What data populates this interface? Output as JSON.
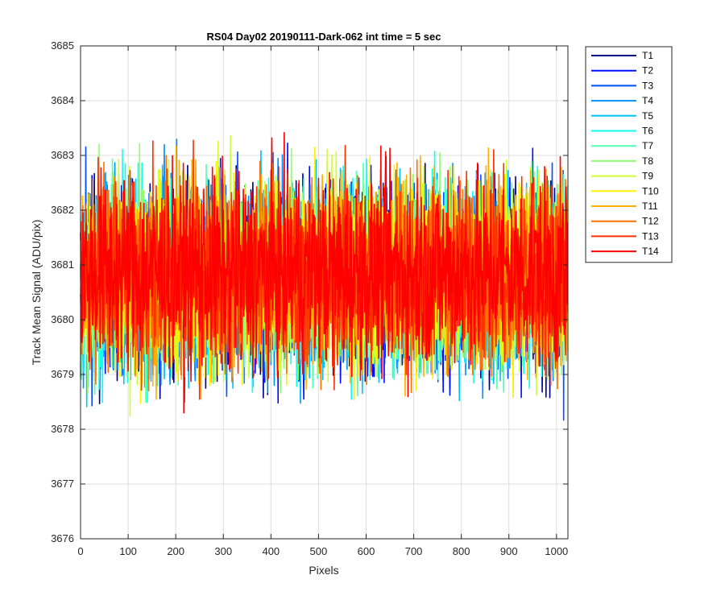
{
  "chart_data": {
    "type": "line",
    "title": "RS04 Day02 20190111-Dark-062 int time = 5 sec",
    "xlabel": "Pixels",
    "ylabel": "Track Mean Signal (ADU/pix)",
    "xlim": [
      0,
      1024
    ],
    "ylim": [
      3676,
      3685
    ],
    "xticks": [
      0,
      100,
      200,
      300,
      400,
      500,
      600,
      700,
      800,
      900,
      1000
    ],
    "yticks": [
      3676,
      3677,
      3678,
      3679,
      3680,
      3681,
      3682,
      3683,
      3684,
      3685
    ],
    "grid": true,
    "legend_position": "outside-top-right",
    "n_points": 1024,
    "noise_mean": 3680.8,
    "noise_sigma": 0.85,
    "series": [
      {
        "name": "T1",
        "color": "#00008f"
      },
      {
        "name": "T2",
        "color": "#0010ff"
      },
      {
        "name": "T3",
        "color": "#0050ff"
      },
      {
        "name": "T4",
        "color": "#0090ff"
      },
      {
        "name": "T5",
        "color": "#00c0ff"
      },
      {
        "name": "T6",
        "color": "#10ffef"
      },
      {
        "name": "T7",
        "color": "#50ffaf"
      },
      {
        "name": "T8",
        "color": "#8fff70"
      },
      {
        "name": "T9",
        "color": "#cfff30"
      },
      {
        "name": "T10",
        "color": "#ffef00"
      },
      {
        "name": "T11",
        "color": "#ffb000"
      },
      {
        "name": "T12",
        "color": "#ff7000"
      },
      {
        "name": "T13",
        "color": "#ff3000"
      },
      {
        "name": "T14",
        "color": "#ff0000"
      }
    ]
  }
}
